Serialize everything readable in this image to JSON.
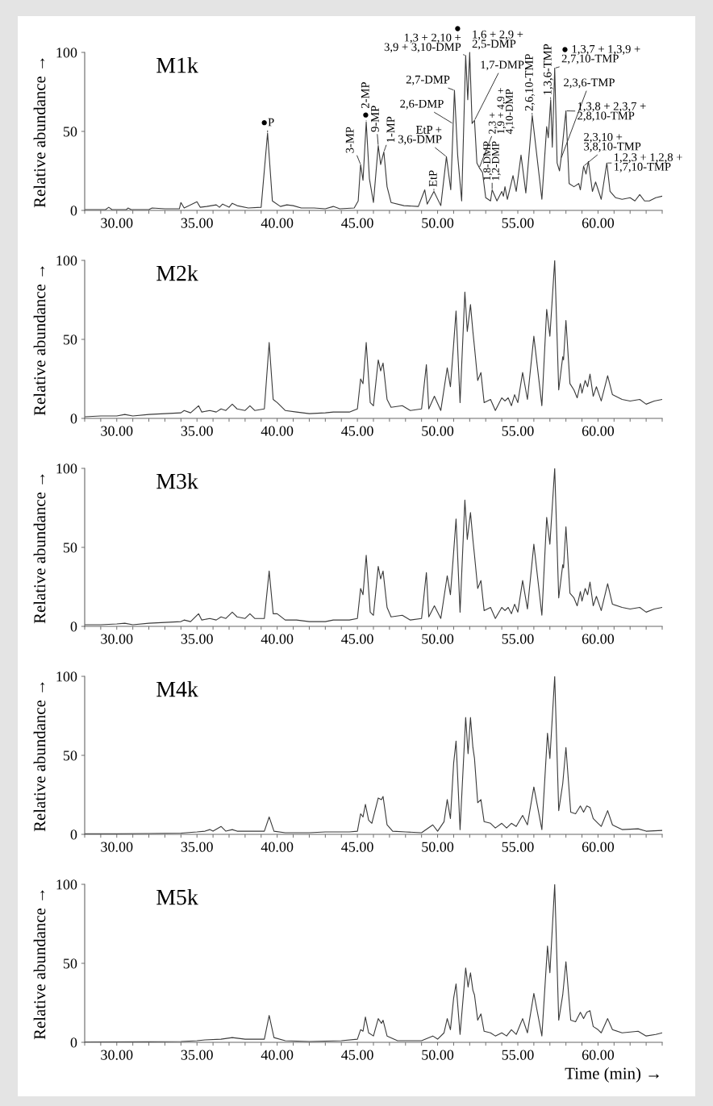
{
  "chart_data": [
    {
      "type": "line",
      "title": "M1k",
      "ylabel": "Relative abundance →",
      "xlim": [
        28,
        64
      ],
      "ylim": [
        0,
        100
      ],
      "yticks": [
        0,
        50,
        100
      ],
      "xticks": [
        {
          "value": 28,
          "label": null
        },
        {
          "value": 29,
          "label": null
        },
        {
          "value": 30,
          "label": "30.00"
        },
        {
          "value": 31,
          "label": null
        },
        {
          "value": 32,
          "label": null
        },
        {
          "value": 33,
          "label": null
        },
        {
          "value": 34,
          "label": null
        },
        {
          "value": 35,
          "label": "35.00"
        },
        {
          "value": 36,
          "label": null
        },
        {
          "value": 37,
          "label": null
        },
        {
          "value": 38,
          "label": null
        },
        {
          "value": 39,
          "label": null
        },
        {
          "value": 40,
          "label": "40.00"
        },
        {
          "value": 41,
          "label": null
        },
        {
          "value": 42,
          "label": null
        },
        {
          "value": 43,
          "label": null
        },
        {
          "value": 44,
          "label": null
        },
        {
          "value": 45,
          "label": "45.00"
        },
        {
          "value": 46,
          "label": null
        },
        {
          "value": 47,
          "label": null
        },
        {
          "value": 48,
          "label": null
        },
        {
          "value": 49,
          "label": null
        },
        {
          "value": 50,
          "label": "50.00"
        },
        {
          "value": 51,
          "label": null
        },
        {
          "value": 52,
          "label": null
        },
        {
          "value": 53,
          "label": null
        },
        {
          "value": 54,
          "label": null
        },
        {
          "value": 55,
          "label": "55.00"
        },
        {
          "value": 56,
          "label": null
        },
        {
          "value": 57,
          "label": null
        },
        {
          "value": 58,
          "label": null
        },
        {
          "value": 59,
          "label": null
        },
        {
          "value": 60,
          "label": "60.00"
        },
        {
          "value": 61,
          "label": null
        },
        {
          "value": 62,
          "label": null
        },
        {
          "value": 63,
          "label": null
        },
        {
          "value": 64,
          "label": null
        }
      ],
      "series": [
        {
          "color": "#3a3a3a",
          "x": [
            28,
            29.3,
            29.5,
            29.7,
            30.6,
            30.7,
            30.9,
            32,
            32.2,
            33,
            33.9,
            34.0,
            34.2,
            35.0,
            35.2,
            35.6,
            36.2,
            36.4,
            36.6,
            37.0,
            37.2,
            37.5,
            38.2,
            39.0,
            39.4,
            39.7,
            40.2,
            40.6,
            41.0,
            41.5,
            42.3,
            43.0,
            43.5,
            43.9,
            44.8,
            45.05,
            45.2,
            45.35,
            45.55,
            45.75,
            46.0,
            46.3,
            46.45,
            46.65,
            46.85,
            47.1,
            47.9,
            48.8,
            49.2,
            49.35,
            49.77,
            50.2,
            50.55,
            50.82,
            51.05,
            51.25,
            51.5,
            51.75,
            51.88,
            52.0,
            52.15,
            52.3,
            52.45,
            52.6,
            52.8,
            53.0,
            53.3,
            53.4,
            53.7,
            54.0,
            54.1,
            54.2,
            54.35,
            54.7,
            54.9,
            55.2,
            55.5,
            55.9,
            56.5,
            56.8,
            56.9,
            57.05,
            57.15,
            57.3,
            57.45,
            57.6,
            57.7,
            58.0,
            58.2,
            58.5,
            58.8,
            58.9,
            59.1,
            59.25,
            59.4,
            59.65,
            59.85,
            60.2,
            60.55,
            60.75,
            61.1,
            61.5,
            62.0,
            62.3,
            62.6,
            62.9,
            63.2,
            63.6,
            64.0
          ],
          "values": [
            0.5,
            0.5,
            2,
            0.5,
            0.5,
            1.5,
            0.5,
            0.5,
            1.5,
            1,
            1,
            5,
            1.5,
            5.5,
            2,
            2.5,
            3.5,
            2,
            4,
            2,
            4.5,
            3,
            1.5,
            2,
            49,
            6,
            2.5,
            3.5,
            3,
            1.5,
            1.5,
            1,
            2.5,
            1,
            1.5,
            6,
            29,
            19,
            56,
            20,
            5,
            41,
            29,
            37,
            15,
            5,
            3,
            2.5,
            13,
            4,
            12,
            3,
            34,
            13,
            76,
            35,
            6,
            98,
            70,
            100,
            55,
            57,
            30,
            27,
            24,
            8,
            6,
            13,
            6,
            12,
            9,
            15,
            7,
            22,
            12,
            35,
            11,
            60,
            7,
            53,
            46,
            70,
            40,
            90,
            30,
            25,
            33,
            63,
            17,
            15,
            17,
            13,
            28,
            23,
            31,
            12,
            18,
            7,
            30,
            12,
            8,
            7,
            8,
            6,
            10,
            6,
            6,
            8,
            9
          ]
        }
      ],
      "annotations": [
        {
          "text": "●P",
          "x": 39.4,
          "y": 49
        },
        {
          "text": "3-MP",
          "x": 45.2,
          "y": 29
        },
        {
          "text": "● 2-MP",
          "x": 45.55,
          "y": 56
        },
        {
          "text": "9-MP",
          "x": 46.3,
          "y": 41
        },
        {
          "text": "1-MP",
          "x": 46.65,
          "y": 37
        },
        {
          "text": "EtP",
          "x": 49.77,
          "y": 12
        },
        {
          "text": "EtP +\n3,6-DMP",
          "x": 50.55,
          "y": 34
        },
        {
          "text": "2,6-DMP",
          "x": 50.95,
          "y": 55
        },
        {
          "text": "2,7-DMP",
          "x": 51.05,
          "y": 76
        },
        {
          "text": "●\n1,3 + 2,10 +\n3,9 + 3,10-DMP",
          "x": 51.75,
          "y": 98
        },
        {
          "text": "1,6 + 2,9 +\n2,5-DMP",
          "x": 52.0,
          "y": 100
        },
        {
          "text": "1,7-DMP",
          "x": 52.3,
          "y": 57
        },
        {
          "text": "2,3 +\n1,9 + 4,9 +\n4,10-DMP",
          "x": 52.6,
          "y": 27
        },
        {
          "text": "1,8-DMP\n1,2-DMP",
          "x": 53.4,
          "y": 13
        },
        {
          "text": "2,6,10-TMP",
          "x": 55.9,
          "y": 60
        },
        {
          "text": "1,3,6-TMP",
          "x": 57.05,
          "y": 70
        },
        {
          "text": "● 1,3,7 + 1,3,9 +\n2,7,10-TMP",
          "x": 57.3,
          "y": 90
        },
        {
          "text": "2,3,6-TMP",
          "x": 57.7,
          "y": 33
        },
        {
          "text": "1,3,8 + 2,3,7 +\n2,8,10-TMP",
          "x": 58.0,
          "y": 63
        },
        {
          "text": "2,3,10 +\n3,8,10-TMP",
          "x": 59.1,
          "y": 28
        },
        {
          "text": "1,2,3 + 1,2,8 +\n1,7,10-TMP",
          "x": 60.55,
          "y": 30
        }
      ]
    },
    {
      "type": "line",
      "title": "M2k",
      "ylabel": "Relative abundance →",
      "xlim": [
        28,
        64
      ],
      "ylim": [
        0,
        100
      ],
      "yticks": [
        0,
        50,
        100
      ],
      "xticks": [
        {
          "value": 28,
          "label": null
        },
        {
          "value": 29,
          "label": null
        },
        {
          "value": 30,
          "label": "30.00"
        },
        {
          "value": 31,
          "label": null
        },
        {
          "value": 32,
          "label": null
        },
        {
          "value": 33,
          "label": null
        },
        {
          "value": 34,
          "label": null
        },
        {
          "value": 35,
          "label": "35.00"
        },
        {
          "value": 36,
          "label": null
        },
        {
          "value": 37,
          "label": null
        },
        {
          "value": 38,
          "label": null
        },
        {
          "value": 39,
          "label": null
        },
        {
          "value": 40,
          "label": "40.00"
        },
        {
          "value": 41,
          "label": null
        },
        {
          "value": 42,
          "label": null
        },
        {
          "value": 43,
          "label": null
        },
        {
          "value": 44,
          "label": null
        },
        {
          "value": 45,
          "label": "45.00"
        },
        {
          "value": 46,
          "label": null
        },
        {
          "value": 47,
          "label": null
        },
        {
          "value": 48,
          "label": null
        },
        {
          "value": 49,
          "label": null
        },
        {
          "value": 50,
          "label": "50.00"
        },
        {
          "value": 51,
          "label": null
        },
        {
          "value": 52,
          "label": null
        },
        {
          "value": 53,
          "label": null
        },
        {
          "value": 54,
          "label": null
        },
        {
          "value": 55,
          "label": "55.00"
        },
        {
          "value": 56,
          "label": null
        },
        {
          "value": 57,
          "label": null
        },
        {
          "value": 58,
          "label": null
        },
        {
          "value": 59,
          "label": null
        },
        {
          "value": 60,
          "label": "60.00"
        },
        {
          "value": 61,
          "label": null
        },
        {
          "value": 62,
          "label": null
        },
        {
          "value": 63,
          "label": null
        },
        {
          "value": 64,
          "label": null
        }
      ],
      "series": [
        {
          "color": "#3a3a3a",
          "x": [
            28,
            29,
            30,
            30.5,
            31,
            32,
            33,
            34,
            34.2,
            34.6,
            35.1,
            35.3,
            35.8,
            36.2,
            36.5,
            36.8,
            37.2,
            37.5,
            38.0,
            38.3,
            38.6,
            39.2,
            39.5,
            39.75,
            40.0,
            40.5,
            41.2,
            42,
            43,
            43.5,
            44.5,
            45.0,
            45.2,
            45.35,
            45.55,
            45.8,
            46.0,
            46.3,
            46.45,
            46.6,
            46.85,
            47.1,
            47.8,
            48.3,
            49.0,
            49.3,
            49.45,
            49.8,
            50.2,
            50.6,
            50.8,
            51.0,
            51.15,
            51.4,
            51.7,
            51.85,
            52.05,
            52.2,
            52.3,
            52.5,
            52.7,
            52.9,
            53.3,
            53.6,
            54.0,
            54.2,
            54.4,
            54.6,
            54.8,
            55.0,
            55.3,
            55.6,
            56.0,
            56.5,
            56.8,
            57.0,
            57.3,
            57.55,
            57.8,
            57.85,
            58.0,
            58.25,
            58.5,
            58.7,
            58.9,
            59.0,
            59.2,
            59.35,
            59.5,
            59.7,
            59.9,
            60.2,
            60.6,
            60.9,
            61.5,
            62,
            62.6,
            63.0,
            63.5,
            64
          ],
          "values": [
            1,
            1.5,
            1.5,
            2.5,
            1.5,
            2.5,
            3,
            3.5,
            5,
            3.5,
            8,
            4,
            5,
            4,
            6,
            5,
            9,
            6,
            5,
            8,
            5,
            6,
            48,
            12,
            10,
            5,
            4,
            3,
            3.5,
            4,
            4,
            6,
            25,
            22,
            48,
            10,
            8,
            37,
            30,
            35,
            12,
            7,
            8,
            5,
            6,
            34,
            6,
            14,
            5,
            32,
            20,
            47,
            68,
            10,
            80,
            55,
            72,
            55,
            45,
            24,
            29,
            10,
            12,
            5,
            13,
            11,
            13,
            8,
            15,
            10,
            29,
            12,
            52,
            8,
            69,
            52,
            100,
            18,
            39,
            37,
            62,
            22,
            18,
            13,
            22,
            16,
            24,
            20,
            28,
            14,
            20,
            11,
            27,
            15,
            12,
            11,
            12,
            9,
            11,
            12
          ]
        }
      ]
    },
    {
      "type": "line",
      "title": "M3k",
      "ylabel": "Relative abundance →",
      "xlim": [
        28,
        64
      ],
      "ylim": [
        0,
        100
      ],
      "yticks": [
        0,
        50,
        100
      ],
      "xticks": [
        {
          "value": 28,
          "label": null
        },
        {
          "value": 29,
          "label": null
        },
        {
          "value": 30,
          "label": "30.00"
        },
        {
          "value": 31,
          "label": null
        },
        {
          "value": 32,
          "label": null
        },
        {
          "value": 33,
          "label": null
        },
        {
          "value": 34,
          "label": null
        },
        {
          "value": 35,
          "label": "35.00"
        },
        {
          "value": 36,
          "label": null
        },
        {
          "value": 37,
          "label": null
        },
        {
          "value": 38,
          "label": null
        },
        {
          "value": 39,
          "label": null
        },
        {
          "value": 40,
          "label": "40.00"
        },
        {
          "value": 41,
          "label": null
        },
        {
          "value": 42,
          "label": null
        },
        {
          "value": 43,
          "label": null
        },
        {
          "value": 44,
          "label": null
        },
        {
          "value": 45,
          "label": "45.00"
        },
        {
          "value": 46,
          "label": null
        },
        {
          "value": 47,
          "label": null
        },
        {
          "value": 48,
          "label": null
        },
        {
          "value": 49,
          "label": null
        },
        {
          "value": 50,
          "label": "50.00"
        },
        {
          "value": 51,
          "label": null
        },
        {
          "value": 52,
          "label": null
        },
        {
          "value": 53,
          "label": null
        },
        {
          "value": 54,
          "label": null
        },
        {
          "value": 55,
          "label": "55.00"
        },
        {
          "value": 56,
          "label": null
        },
        {
          "value": 57,
          "label": null
        },
        {
          "value": 58,
          "label": null
        },
        {
          "value": 59,
          "label": null
        },
        {
          "value": 60,
          "label": "60.00"
        },
        {
          "value": 61,
          "label": null
        },
        {
          "value": 62,
          "label": null
        },
        {
          "value": 63,
          "label": null
        },
        {
          "value": 64,
          "label": null
        }
      ],
      "series": [
        {
          "color": "#3a3a3a",
          "x": [
            28,
            29,
            30,
            30.5,
            31,
            32,
            33,
            34,
            34.2,
            34.6,
            35.1,
            35.3,
            35.8,
            36.2,
            36.5,
            36.8,
            37.2,
            37.5,
            38.0,
            38.3,
            38.6,
            39.2,
            39.5,
            39.75,
            40.0,
            40.5,
            41.2,
            42,
            43,
            43.5,
            44.5,
            45.0,
            45.2,
            45.35,
            45.55,
            45.8,
            46.0,
            46.3,
            46.45,
            46.6,
            46.85,
            47.1,
            47.8,
            48.3,
            49.0,
            49.3,
            49.45,
            49.8,
            50.2,
            50.6,
            50.8,
            51.0,
            51.15,
            51.4,
            51.7,
            51.85,
            52.05,
            52.2,
            52.3,
            52.5,
            52.7,
            52.9,
            53.3,
            53.6,
            54.0,
            54.2,
            54.4,
            54.6,
            54.8,
            55.0,
            55.3,
            55.6,
            56.0,
            56.5,
            56.8,
            57.0,
            57.3,
            57.55,
            57.8,
            57.85,
            58.0,
            58.25,
            58.5,
            58.7,
            58.9,
            59.0,
            59.2,
            59.35,
            59.5,
            59.7,
            59.9,
            60.2,
            60.6,
            60.9,
            61.5,
            62,
            62.6,
            63.0,
            63.5,
            64
          ],
          "values": [
            1,
            1,
            1.5,
            2,
            1,
            2,
            2.5,
            3,
            4,
            3,
            8,
            4,
            5,
            4,
            6,
            5,
            9,
            6,
            5,
            8,
            5,
            5,
            35,
            8,
            8,
            4,
            4,
            3,
            3,
            4,
            4,
            5,
            24,
            20,
            45,
            9,
            7,
            38,
            30,
            35,
            12,
            6,
            7,
            4,
            5,
            34,
            6,
            13,
            5,
            32,
            20,
            47,
            68,
            9,
            80,
            55,
            72,
            55,
            45,
            24,
            29,
            10,
            12,
            5,
            12,
            10,
            12,
            8,
            14,
            9,
            29,
            11,
            52,
            7,
            69,
            52,
            100,
            18,
            39,
            37,
            63,
            21,
            18,
            13,
            22,
            16,
            24,
            20,
            28,
            13,
            19,
            10,
            27,
            14,
            12,
            11,
            12,
            9,
            11,
            12
          ]
        }
      ]
    },
    {
      "type": "line",
      "title": "M4k",
      "ylabel": "Relative abundance →",
      "xlim": [
        28,
        64
      ],
      "ylim": [
        0,
        100
      ],
      "yticks": [
        0,
        50,
        100
      ],
      "xticks": [
        {
          "value": 28,
          "label": null
        },
        {
          "value": 29,
          "label": null
        },
        {
          "value": 30,
          "label": "30.00"
        },
        {
          "value": 31,
          "label": null
        },
        {
          "value": 32,
          "label": null
        },
        {
          "value": 33,
          "label": null
        },
        {
          "value": 34,
          "label": null
        },
        {
          "value": 35,
          "label": "35.00"
        },
        {
          "value": 36,
          "label": null
        },
        {
          "value": 37,
          "label": null
        },
        {
          "value": 38,
          "label": null
        },
        {
          "value": 39,
          "label": null
        },
        {
          "value": 40,
          "label": "40.00"
        },
        {
          "value": 41,
          "label": null
        },
        {
          "value": 42,
          "label": null
        },
        {
          "value": 43,
          "label": null
        },
        {
          "value": 44,
          "label": null
        },
        {
          "value": 45,
          "label": "45.00"
        },
        {
          "value": 46,
          "label": null
        },
        {
          "value": 47,
          "label": null
        },
        {
          "value": 48,
          "label": null
        },
        {
          "value": 49,
          "label": null
        },
        {
          "value": 50,
          "label": "50.00"
        },
        {
          "value": 51,
          "label": null
        },
        {
          "value": 52,
          "label": null
        },
        {
          "value": 53,
          "label": null
        },
        {
          "value": 54,
          "label": null
        },
        {
          "value": 55,
          "label": "55.00"
        },
        {
          "value": 56,
          "label": null
        },
        {
          "value": 57,
          "label": null
        },
        {
          "value": 58,
          "label": null
        },
        {
          "value": 59,
          "label": null
        },
        {
          "value": 60,
          "label": "60.00"
        },
        {
          "value": 61,
          "label": null
        },
        {
          "value": 62,
          "label": null
        },
        {
          "value": 63,
          "label": null
        },
        {
          "value": 64,
          "label": null
        }
      ],
      "series": [
        {
          "color": "#3a3a3a",
          "x": [
            28,
            30,
            32,
            34,
            35.0,
            35.5,
            35.8,
            36.0,
            36.5,
            36.8,
            37.2,
            37.5,
            38.5,
            39.2,
            39.5,
            39.8,
            40.5,
            42,
            43,
            44.5,
            45.0,
            45.2,
            45.35,
            45.5,
            45.7,
            45.9,
            46.3,
            46.5,
            46.6,
            46.85,
            47.2,
            48,
            49,
            49.7,
            50.0,
            50.4,
            50.6,
            50.8,
            51.0,
            51.15,
            51.4,
            51.75,
            51.9,
            52.05,
            52.2,
            52.3,
            52.5,
            52.7,
            52.9,
            53.3,
            53.6,
            54.0,
            54.3,
            54.6,
            54.9,
            55.3,
            55.6,
            56.0,
            56.5,
            56.85,
            57.0,
            57.3,
            57.55,
            57.8,
            58.0,
            58.3,
            58.6,
            58.9,
            59.1,
            59.3,
            59.5,
            59.7,
            60.0,
            60.2,
            60.6,
            60.9,
            61.5,
            62.5,
            63,
            64
          ],
          "values": [
            0.3,
            0.3,
            0.5,
            0.8,
            1.5,
            2,
            3,
            2,
            5,
            2,
            3,
            2,
            2,
            2,
            11,
            2,
            1,
            1,
            1.5,
            1.5,
            2,
            13,
            11,
            19,
            9,
            7,
            23,
            22,
            24,
            6,
            2,
            1.5,
            1,
            6,
            2,
            8,
            22,
            10,
            45,
            59,
            3,
            74,
            51,
            74,
            55,
            48,
            20,
            22,
            8,
            7,
            4,
            7,
            4,
            7,
            5,
            12,
            6,
            30,
            3,
            64,
            48,
            100,
            15,
            32,
            55,
            14,
            13,
            18,
            14,
            18,
            17,
            10,
            7,
            5,
            15,
            6,
            3,
            3.5,
            2,
            2.5
          ]
        }
      ]
    },
    {
      "type": "line",
      "title": "M5k",
      "ylabel": "Relative abundance →",
      "xlabel": "Time (min) →",
      "xlim": [
        28,
        64
      ],
      "ylim": [
        0,
        100
      ],
      "yticks": [
        0,
        50,
        100
      ],
      "xticks": [
        {
          "value": 28,
          "label": null
        },
        {
          "value": 29,
          "label": null
        },
        {
          "value": 30,
          "label": "30.00"
        },
        {
          "value": 31,
          "label": null
        },
        {
          "value": 32,
          "label": null
        },
        {
          "value": 33,
          "label": null
        },
        {
          "value": 34,
          "label": null
        },
        {
          "value": 35,
          "label": "35.00"
        },
        {
          "value": 36,
          "label": null
        },
        {
          "value": 37,
          "label": null
        },
        {
          "value": 38,
          "label": null
        },
        {
          "value": 39,
          "label": null
        },
        {
          "value": 40,
          "label": "40.00"
        },
        {
          "value": 41,
          "label": null
        },
        {
          "value": 42,
          "label": null
        },
        {
          "value": 43,
          "label": null
        },
        {
          "value": 44,
          "label": null
        },
        {
          "value": 45,
          "label": "45.00"
        },
        {
          "value": 46,
          "label": null
        },
        {
          "value": 47,
          "label": null
        },
        {
          "value": 48,
          "label": null
        },
        {
          "value": 49,
          "label": null
        },
        {
          "value": 50,
          "label": "50.00"
        },
        {
          "value": 51,
          "label": null
        },
        {
          "value": 52,
          "label": null
        },
        {
          "value": 53,
          "label": null
        },
        {
          "value": 54,
          "label": null
        },
        {
          "value": 55,
          "label": "55.00"
        },
        {
          "value": 56,
          "label": null
        },
        {
          "value": 57,
          "label": null
        },
        {
          "value": 58,
          "label": null
        },
        {
          "value": 59,
          "label": null
        },
        {
          "value": 60,
          "label": "60.00"
        },
        {
          "value": 61,
          "label": null
        },
        {
          "value": 62,
          "label": null
        },
        {
          "value": 63,
          "label": null
        },
        {
          "value": 64,
          "label": null
        }
      ],
      "series": [
        {
          "color": "#3a3a3a",
          "x": [
            28,
            32,
            34,
            35,
            35.5,
            36.5,
            37.2,
            38,
            39.2,
            39.5,
            39.8,
            40.5,
            42,
            44,
            45.0,
            45.2,
            45.35,
            45.5,
            45.7,
            46.0,
            46.3,
            46.5,
            46.6,
            46.85,
            47.5,
            49,
            49.7,
            50.0,
            50.4,
            50.6,
            50.8,
            51.0,
            51.15,
            51.4,
            51.75,
            51.9,
            52.05,
            52.2,
            52.3,
            52.5,
            52.7,
            52.9,
            53.3,
            53.6,
            54.0,
            54.3,
            54.6,
            54.9,
            55.3,
            55.6,
            56.0,
            56.5,
            56.85,
            57.0,
            57.3,
            57.55,
            57.8,
            58.0,
            58.3,
            58.6,
            58.9,
            59.1,
            59.3,
            59.5,
            59.7,
            60.0,
            60.2,
            60.6,
            60.9,
            61.5,
            62.5,
            63,
            63.6,
            64
          ],
          "values": [
            0.2,
            0.3,
            0.5,
            1,
            1.5,
            2,
            3,
            2,
            2,
            17,
            3,
            1,
            0.5,
            1,
            2,
            8,
            7,
            16,
            6,
            4,
            15,
            12,
            14,
            4,
            1,
            1,
            4,
            2,
            6,
            15,
            8,
            28,
            37,
            5,
            47,
            35,
            44,
            33,
            30,
            14,
            18,
            7,
            6,
            4,
            6,
            4,
            8,
            5,
            15,
            6,
            31,
            4,
            61,
            44,
            100,
            14,
            30,
            51,
            14,
            13,
            19,
            15,
            19,
            20,
            10,
            8,
            6,
            15,
            8,
            6,
            7,
            4,
            5,
            6
          ]
        }
      ]
    }
  ]
}
